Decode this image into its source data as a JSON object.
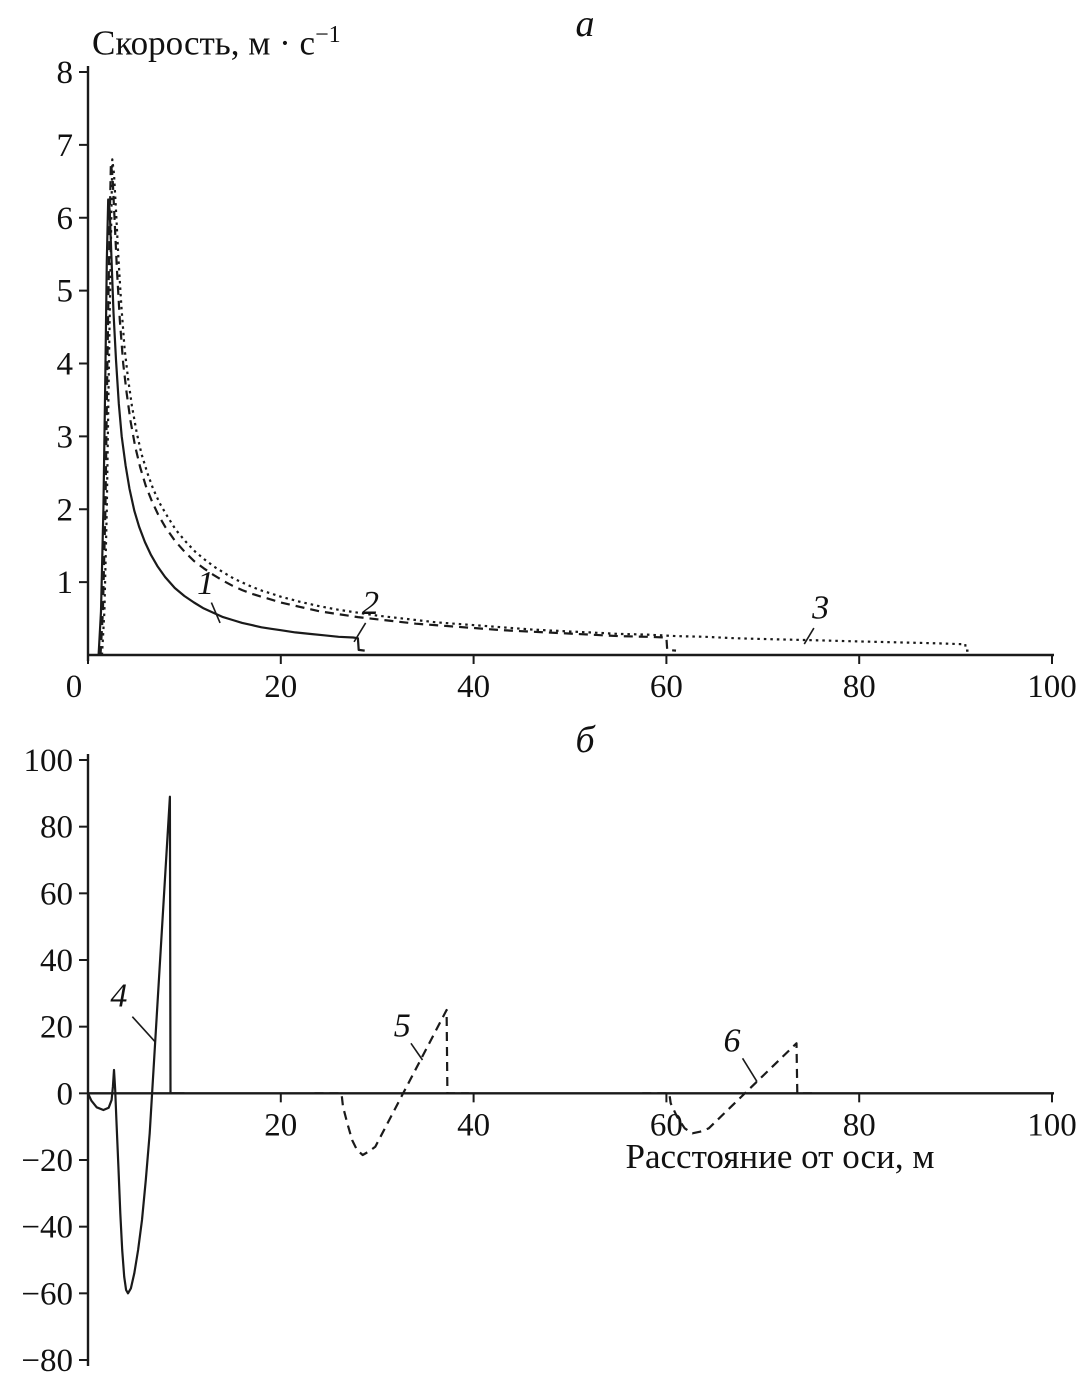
{
  "colors": {
    "line": "#1a1a1a",
    "background": "#ffffff"
  },
  "chart_data": [
    {
      "id": "a",
      "type": "line",
      "title": "а",
      "ylabel_main": "Скорость, м · с",
      "ylabel_sup": "−1",
      "xlabel": "",
      "xlim": [
        0,
        100
      ],
      "ylim": [
        0,
        8
      ],
      "grid": false,
      "legend": "none (curves labeled 1, 2, 3 with leader lines)",
      "xticks": [
        {
          "v": 0,
          "label": "0",
          "dx": -14
        },
        {
          "v": 20,
          "label": "20"
        },
        {
          "v": 40,
          "label": "40"
        },
        {
          "v": 60,
          "label": "60"
        },
        {
          "v": 80,
          "label": "80"
        },
        {
          "v": 100,
          "label": "100"
        }
      ],
      "yticks": [
        {
          "v": 1,
          "label": "1"
        },
        {
          "v": 2,
          "label": "2"
        },
        {
          "v": 3,
          "label": "3"
        },
        {
          "v": 4,
          "label": "4"
        },
        {
          "v": 5,
          "label": "5"
        },
        {
          "v": 6,
          "label": "6"
        },
        {
          "v": 7,
          "label": "7"
        },
        {
          "v": 8,
          "label": "8"
        }
      ],
      "series": [
        {
          "name": "1",
          "style": "solid",
          "points": [
            [
              1.1,
              0
            ],
            [
              1.35,
              0.6
            ],
            [
              1.6,
              2.0
            ],
            [
              1.8,
              3.9
            ],
            [
              1.95,
              5.4
            ],
            [
              2.1,
              6.25
            ],
            [
              2.25,
              6.1
            ],
            [
              2.45,
              5.4
            ],
            [
              2.65,
              4.7
            ],
            [
              2.9,
              4.05
            ],
            [
              3.2,
              3.45
            ],
            [
              3.5,
              3.0
            ],
            [
              3.9,
              2.6
            ],
            [
              4.3,
              2.28
            ],
            [
              4.8,
              1.98
            ],
            [
              5.3,
              1.76
            ],
            [
              5.9,
              1.55
            ],
            [
              6.5,
              1.38
            ],
            [
              7.2,
              1.22
            ],
            [
              8,
              1.07
            ],
            [
              9,
              0.92
            ],
            [
              10,
              0.81
            ],
            [
              11,
              0.72
            ],
            [
              12,
              0.64
            ],
            [
              13,
              0.58
            ],
            [
              14,
              0.52
            ],
            [
              15,
              0.48
            ],
            [
              16,
              0.44
            ],
            [
              17,
              0.41
            ],
            [
              18,
              0.38
            ],
            [
              19,
              0.36
            ],
            [
              20,
              0.34
            ],
            [
              21.5,
              0.31
            ],
            [
              23,
              0.29
            ],
            [
              24.5,
              0.27
            ],
            [
              26,
              0.25
            ],
            [
              27.5,
              0.24
            ],
            [
              28,
              0.23
            ],
            [
              28.08,
              0.07
            ],
            [
              28.7,
              0.06
            ]
          ]
        },
        {
          "name": "2",
          "style": "dashed",
          "points": [
            [
              1.3,
              0
            ],
            [
              1.55,
              0.6
            ],
            [
              1.8,
              2.0
            ],
            [
              2.0,
              3.9
            ],
            [
              2.2,
              5.6
            ],
            [
              2.38,
              6.75
            ],
            [
              2.55,
              6.55
            ],
            [
              2.75,
              6.0
            ],
            [
              3.0,
              5.3
            ],
            [
              3.3,
              4.6
            ],
            [
              3.65,
              4.0
            ],
            [
              4.0,
              3.6
            ],
            [
              4.4,
              3.22
            ],
            [
              4.9,
              2.86
            ],
            [
              5.4,
              2.58
            ],
            [
              6.0,
              2.32
            ],
            [
              6.6,
              2.12
            ],
            [
              7.3,
              1.92
            ],
            [
              8,
              1.76
            ],
            [
              9,
              1.57
            ],
            [
              10,
              1.42
            ],
            [
              11,
              1.29
            ],
            [
              12,
              1.19
            ],
            [
              13,
              1.1
            ],
            [
              14,
              1.02
            ],
            [
              15,
              0.95
            ],
            [
              16,
              0.89
            ],
            [
              17,
              0.84
            ],
            [
              18,
              0.8
            ],
            [
              19,
              0.76
            ],
            [
              20,
              0.72
            ],
            [
              22,
              0.66
            ],
            [
              24,
              0.6
            ],
            [
              26,
              0.56
            ],
            [
              28,
              0.52
            ],
            [
              30,
              0.49
            ],
            [
              32,
              0.46
            ],
            [
              34,
              0.43
            ],
            [
              36,
              0.41
            ],
            [
              38,
              0.39
            ],
            [
              40,
              0.37
            ],
            [
              43,
              0.34
            ],
            [
              46,
              0.32
            ],
            [
              49,
              0.3
            ],
            [
              52,
              0.28
            ],
            [
              55,
              0.26
            ],
            [
              58,
              0.25
            ],
            [
              60,
              0.24
            ],
            [
              60.08,
              0.07
            ],
            [
              61,
              0.06
            ]
          ]
        },
        {
          "name": "3",
          "style": "dotted",
          "points": [
            [
              1.45,
              0
            ],
            [
              1.7,
              0.6
            ],
            [
              1.95,
              2.0
            ],
            [
              2.15,
              3.8
            ],
            [
              2.35,
              5.5
            ],
            [
              2.52,
              6.8
            ],
            [
              2.7,
              6.6
            ],
            [
              2.9,
              6.1
            ],
            [
              3.15,
              5.45
            ],
            [
              3.45,
              4.8
            ],
            [
              3.8,
              4.2
            ],
            [
              4.15,
              3.8
            ],
            [
              4.55,
              3.42
            ],
            [
              5.05,
              3.05
            ],
            [
              5.55,
              2.76
            ],
            [
              6.15,
              2.5
            ],
            [
              6.75,
              2.28
            ],
            [
              7.45,
              2.08
            ],
            [
              8.15,
              1.92
            ],
            [
              9.1,
              1.72
            ],
            [
              10.1,
              1.56
            ],
            [
              11.1,
              1.42
            ],
            [
              12.1,
              1.31
            ],
            [
              13.1,
              1.21
            ],
            [
              14.1,
              1.13
            ],
            [
              15.1,
              1.05
            ],
            [
              16.1,
              0.99
            ],
            [
              17.1,
              0.93
            ],
            [
              18.1,
              0.88
            ],
            [
              19.1,
              0.84
            ],
            [
              20,
              0.8
            ],
            [
              22,
              0.73
            ],
            [
              24,
              0.67
            ],
            [
              26,
              0.62
            ],
            [
              28,
              0.58
            ],
            [
              30,
              0.54
            ],
            [
              32,
              0.51
            ],
            [
              34,
              0.48
            ],
            [
              36,
              0.45
            ],
            [
              38,
              0.43
            ],
            [
              40,
              0.41
            ],
            [
              43,
              0.38
            ],
            [
              46,
              0.35
            ],
            [
              49,
              0.33
            ],
            [
              52,
              0.31
            ],
            [
              55,
              0.29
            ],
            [
              58,
              0.28
            ],
            [
              61,
              0.26
            ],
            [
              64,
              0.25
            ],
            [
              67,
              0.23
            ],
            [
              70,
              0.22
            ],
            [
              73,
              0.21
            ],
            [
              76,
              0.2
            ],
            [
              79,
              0.19
            ],
            [
              82,
              0.18
            ],
            [
              85,
              0.17
            ],
            [
              88,
              0.16
            ],
            [
              90.5,
              0.15
            ],
            [
              91,
              0.15
            ],
            [
              91.08,
              0.06
            ],
            [
              91.6,
              0.06
            ]
          ]
        }
      ],
      "annotations": [
        {
          "text": "1",
          "x": 12.2,
          "y": 0.84,
          "line": [
            [
              12.8,
              0.72
            ],
            [
              13.7,
              0.44
            ]
          ]
        },
        {
          "text": "2",
          "x": 29.3,
          "y": 0.56,
          "line": [
            [
              28.8,
              0.44
            ],
            [
              27.6,
              0.18
            ]
          ]
        },
        {
          "text": "3",
          "x": 76.0,
          "y": 0.5,
          "line": [
            [
              75.3,
              0.37
            ],
            [
              74.3,
              0.15
            ]
          ]
        }
      ]
    },
    {
      "id": "b",
      "type": "line",
      "title": "б",
      "ylabel_main": "",
      "ylabel_sup": "",
      "xlabel": "Расстояние от оси, м",
      "xlim": [
        0,
        100
      ],
      "ylim": [
        -80,
        100
      ],
      "grid": false,
      "legend": "none (curves labeled 4, 5, 6 with leader lines)",
      "xticks": [
        {
          "v": 20,
          "label": "20"
        },
        {
          "v": 40,
          "label": "40"
        },
        {
          "v": 60,
          "label": "60"
        },
        {
          "v": 80,
          "label": "80"
        },
        {
          "v": 100,
          "label": "100"
        }
      ],
      "yticks": [
        {
          "v": -80,
          "label": "−80"
        },
        {
          "v": -60,
          "label": "−60"
        },
        {
          "v": -40,
          "label": "−40"
        },
        {
          "v": -20,
          "label": "−20"
        },
        {
          "v": 0,
          "label": "0"
        },
        {
          "v": 20,
          "label": "20"
        },
        {
          "v": 40,
          "label": "40"
        },
        {
          "v": 60,
          "label": "60"
        },
        {
          "v": 80,
          "label": "80"
        },
        {
          "v": 100,
          "label": "100"
        }
      ],
      "series": [
        {
          "name": "4",
          "style": "solid",
          "points": [
            [
              0,
              0
            ],
            [
              0.35,
              -2.2
            ],
            [
              0.9,
              -4.2
            ],
            [
              1.6,
              -5
            ],
            [
              2.15,
              -4.3
            ],
            [
              2.45,
              -2
            ],
            [
              2.58,
              2
            ],
            [
              2.7,
              7
            ],
            [
              2.82,
              1
            ],
            [
              2.95,
              -8
            ],
            [
              3.15,
              -22
            ],
            [
              3.35,
              -36
            ],
            [
              3.55,
              -47
            ],
            [
              3.75,
              -55
            ],
            [
              3.95,
              -59
            ],
            [
              4.15,
              -60
            ],
            [
              4.45,
              -58.5
            ],
            [
              4.8,
              -54
            ],
            [
              5.2,
              -47
            ],
            [
              5.6,
              -38
            ],
            [
              6.0,
              -26
            ],
            [
              6.4,
              -12
            ],
            [
              6.65,
              0
            ],
            [
              8.5,
              89
            ],
            [
              8.56,
              0
            ],
            [
              10,
              0
            ]
          ]
        },
        {
          "name": "5",
          "style": "dashed",
          "points": [
            [
              23.5,
              0
            ],
            [
              26.3,
              0
            ],
            [
              26.45,
              -4
            ],
            [
              26.9,
              -9
            ],
            [
              27.4,
              -14
            ],
            [
              27.9,
              -17
            ],
            [
              28.5,
              -18.5
            ],
            [
              29.1,
              -17.5
            ],
            [
              29.8,
              -16
            ],
            [
              37.2,
              25
            ],
            [
              37.28,
              0
            ],
            [
              39.5,
              0
            ]
          ]
        },
        {
          "name": "6",
          "style": "dashed",
          "points": [
            [
              57.5,
              0
            ],
            [
              60.3,
              0
            ],
            [
              60.45,
              -3
            ],
            [
              61.1,
              -7
            ],
            [
              61.9,
              -10.5
            ],
            [
              62.7,
              -12
            ],
            [
              63.5,
              -11.5
            ],
            [
              64.4,
              -10.5
            ],
            [
              73.5,
              15
            ],
            [
              73.58,
              0
            ],
            [
              75.5,
              0
            ]
          ]
        }
      ],
      "annotations": [
        {
          "text": "4",
          "x": 3.2,
          "y": 26,
          "line": [
            [
              4.6,
              23
            ],
            [
              6.95,
              15.5
            ]
          ]
        },
        {
          "text": "5",
          "x": 32.6,
          "y": 17,
          "line": [
            [
              33.5,
              15
            ],
            [
              34.7,
              10
            ]
          ]
        },
        {
          "text": "6",
          "x": 66.8,
          "y": 12.5,
          "line": [
            [
              67.9,
              10.5
            ],
            [
              69.4,
              3.5
            ]
          ]
        }
      ]
    }
  ]
}
